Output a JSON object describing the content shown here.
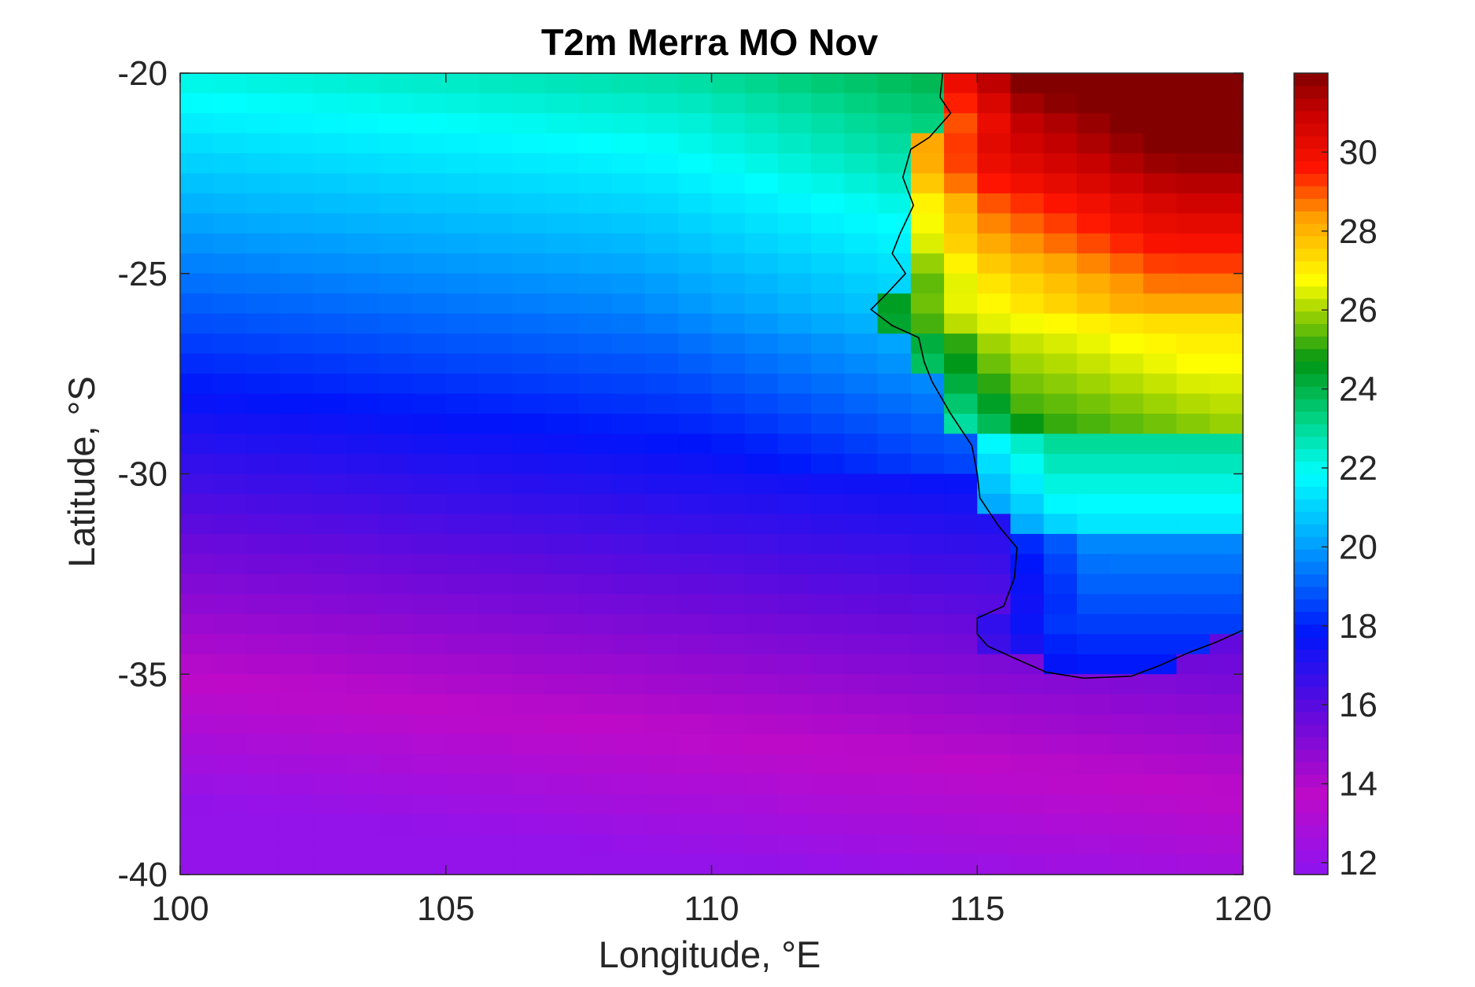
{
  "chart_data": {
    "type": "heatmap",
    "title": "T2m Merra MO Nov",
    "xlabel": "Longitude, °E",
    "ylabel": "Latitude, °S",
    "xlim": [
      100,
      120
    ],
    "ylim": [
      -40,
      -20
    ],
    "xticks": [
      100,
      105,
      110,
      115,
      120
    ],
    "yticks": [
      -20,
      -25,
      -30,
      -35,
      -40
    ],
    "x_tick_labels": [
      "100",
      "105",
      "110",
      "115",
      "120"
    ],
    "y_tick_labels": [
      "-20",
      "-25",
      "-30",
      "-35",
      "-40"
    ],
    "colorbar": {
      "range": [
        11.7,
        32
      ],
      "ticks": [
        12,
        14,
        16,
        18,
        20,
        22,
        24,
        26,
        28,
        30
      ],
      "tick_labels": [
        "12",
        "14",
        "16",
        "18",
        "20",
        "22",
        "24",
        "26",
        "28",
        "30"
      ],
      "colormap": "jet-like with purple low end (purple, blue, cyan, green, yellow, orange, red, dark red)"
    },
    "grid": false,
    "grid_resolution_deg": {
      "lon": 0.625,
      "lat": 0.5
    },
    "field_description": "November mean 2 m air temperature (°C); ocean values decrease southward from ~23 at 20°S to ~12 at 40°S; over Western Australia land values reach ~31-32 near 20-22°S, 118-120°E",
    "coastline": "black outline of the Western Australia coast from ~114°E 21.5°S south to 115°E 34.5°S and east along the southern coast to 120°E"
  }
}
